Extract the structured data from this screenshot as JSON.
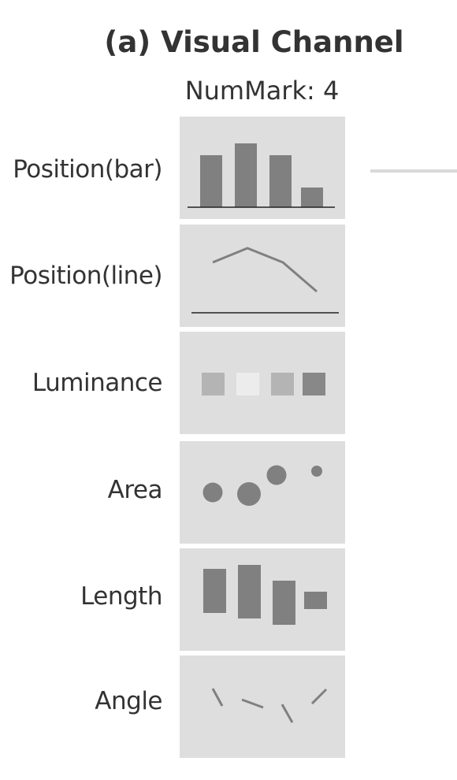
{
  "title": "(a) Visual Channel",
  "subtitle": "NumMark: 4",
  "rows": [
    {
      "label": "Position(bar)",
      "glyph": "bar-marks"
    },
    {
      "label": "Position(line)",
      "glyph": "line-marks"
    },
    {
      "label": "Luminance",
      "glyph": "luminance-squares"
    },
    {
      "label": "Area",
      "glyph": "area-circles"
    },
    {
      "label": "Length",
      "glyph": "length-bars"
    },
    {
      "label": "Angle",
      "glyph": "angle-ticks"
    }
  ],
  "colors": {
    "panel_bg": "#dedede",
    "mark": "#808080",
    "baseline": "#222222",
    "luminance": [
      "#b4b4b4",
      "#ececec",
      "#b4b4b4",
      "#888888"
    ],
    "text": "#333333"
  }
}
